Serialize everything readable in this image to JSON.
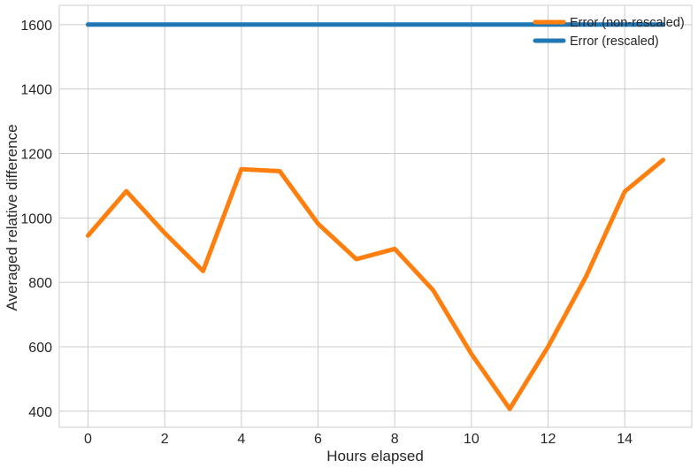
{
  "chart_data": {
    "type": "line",
    "title": "",
    "xlabel": "Hours elapsed",
    "ylabel": "Averaged relative difference",
    "x": [
      0,
      1,
      2,
      3,
      4,
      5,
      6,
      7,
      8,
      9,
      10,
      11,
      12,
      13,
      14,
      15
    ],
    "xlim": [
      -0.75,
      15.75
    ],
    "ylim": [
      350,
      1660
    ],
    "xticks": [
      0,
      2,
      4,
      6,
      8,
      10,
      12,
      14
    ],
    "yticks": [
      400,
      600,
      800,
      1000,
      1200,
      1400,
      1600
    ],
    "grid": true,
    "legend_position": "top-right",
    "series": [
      {
        "name": "Error (non-rescaled)",
        "color": "#ff7f0e",
        "values": [
          945,
          1083,
          953,
          835,
          1151,
          1145,
          982,
          872,
          904,
          776,
          578,
          407,
          600,
          820,
          1082,
          1180
        ]
      },
      {
        "name": "Error (rescaled)",
        "color": "#1f77b4",
        "values": [
          1600,
          1600,
          1600,
          1600,
          1600,
          1600,
          1600,
          1600,
          1600,
          1600,
          1600,
          1600,
          1600,
          1600,
          1600,
          1600
        ]
      }
    ]
  }
}
